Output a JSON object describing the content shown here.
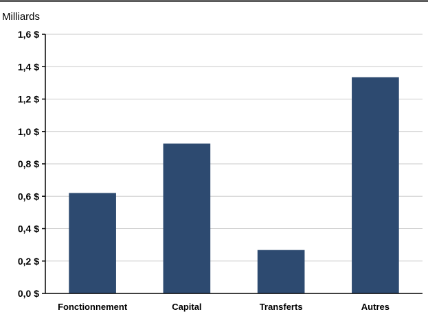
{
  "chart_data": {
    "type": "bar",
    "unit_label": "Milliards",
    "categories": [
      "Fonctionnement",
      "Capital",
      "Transferts",
      "Autres"
    ],
    "values": [
      0.62,
      0.925,
      0.268,
      1.335
    ],
    "ylim": [
      0,
      1.6
    ],
    "yticks": [
      0,
      0.2,
      0.4,
      0.6,
      0.8,
      1.0,
      1.2,
      1.4,
      1.6
    ],
    "ytick_labels": [
      "0,0 $",
      "0,2 $",
      "0,4 $",
      "0,6 $",
      "0,8 $",
      "1,0 $",
      "1,2 $",
      "1,4 $",
      "1,6 $"
    ],
    "grid": true,
    "legend": "none",
    "colors": {
      "bar": "#2d4a70",
      "grid": "#c8c8c8",
      "axis": "#000000",
      "frame": "#000000"
    }
  }
}
